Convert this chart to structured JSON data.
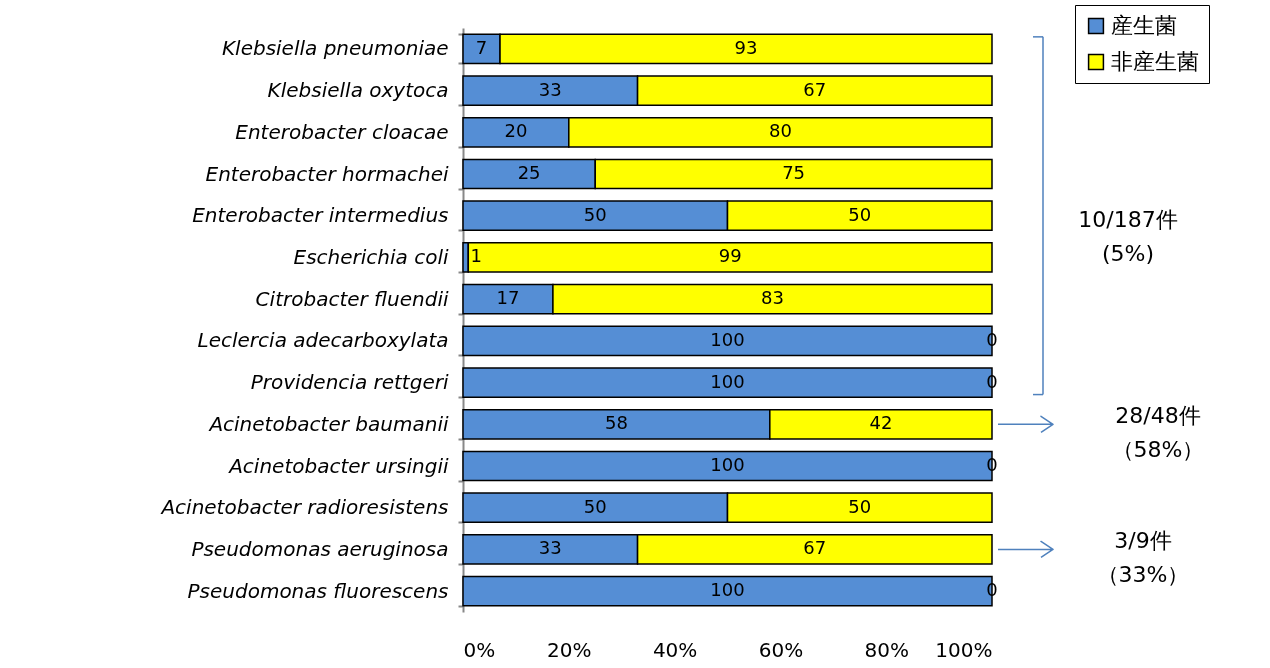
{
  "chart_data": {
    "type": "bar",
    "orientation": "horizontal",
    "stacked": true,
    "data_labels": true,
    "legend": "top right",
    "grid": false,
    "categories": [
      "Klebsiella pneumoniae",
      "Klebsiella oxytoca",
      "Enterobacter cloacae",
      "Enterobacter hormachei",
      "Enterobacter intermedius",
      "Escherichia coli",
      "Citrobacter fluendii",
      "Leclercia adecarboxylata",
      "Providencia rettgeri",
      "Acinetobacter baumanii",
      "Acinetobacter ursingii",
      "Acinetobacter radioresistens",
      "Pseudomonas aeruginosa",
      "Pseudomonas fluorescens"
    ],
    "series": [
      {
        "name": "産生菌",
        "color": "#558ed5",
        "values": [
          7,
          33,
          20,
          25,
          50,
          1,
          17,
          100,
          100,
          58,
          100,
          50,
          33,
          100
        ]
      },
      {
        "name": "非産生菌",
        "color": "#ffff00",
        "values": [
          93,
          67,
          80,
          75,
          50,
          99,
          83,
          0,
          0,
          42,
          0,
          50,
          67,
          0
        ]
      }
    ],
    "xlim": [
      0,
      100
    ],
    "xticks": [
      {
        "value": 0,
        "label": "0%"
      },
      {
        "value": 20,
        "label": "20%"
      },
      {
        "value": 40,
        "label": "40%"
      },
      {
        "value": 60,
        "label": "60%"
      },
      {
        "value": 80,
        "label": "80%"
      },
      {
        "value": 100,
        "label": "100%"
      }
    ],
    "annotations": [
      "10/187件",
      "(5%)",
      "28/48件",
      "（58%）",
      "3/9件",
      "（33%）"
    ]
  }
}
